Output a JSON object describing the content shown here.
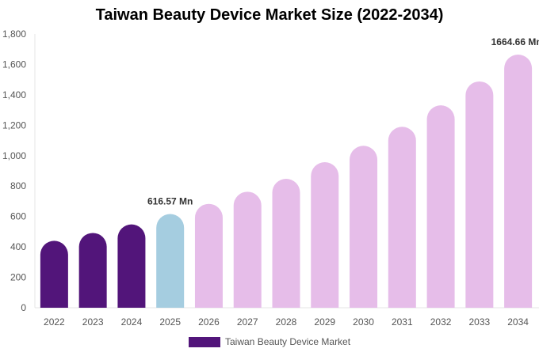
{
  "chart_data": {
    "type": "bar",
    "title": "Taiwan Beauty Device Market Size (2022-2034)",
    "xlabel": "",
    "ylabel": "",
    "categories": [
      "2022",
      "2023",
      "2024",
      "2025",
      "2026",
      "2027",
      "2028",
      "2029",
      "2030",
      "2031",
      "2032",
      "2033",
      "2034"
    ],
    "series": [
      {
        "name": "Taiwan Beauty Device Market",
        "values": [
          440,
          492,
          548,
          616.57,
          683,
          763,
          848,
          957,
          1065,
          1190,
          1331,
          1488,
          1664.66
        ]
      }
    ],
    "ylim": [
      0,
      1800
    ],
    "yticks": [
      "0",
      "200",
      "400",
      "600",
      "800",
      "1,000",
      "1,200",
      "1,400",
      "1,600",
      "1,800"
    ],
    "ytick_values": [
      0,
      200,
      400,
      600,
      800,
      1000,
      1200,
      1400,
      1600,
      1800
    ],
    "data_labels": [
      {
        "category": "2025",
        "text": "616.57 Mn"
      },
      {
        "category": "2034",
        "text": "1664.66 Mn"
      }
    ],
    "bar_colors": {
      "historical": "#52157a",
      "base_year": "#a5cde0",
      "forecast": "#e6bde9"
    },
    "legend_color": "#52157a",
    "legend_position": "bottom-center",
    "grid": false
  }
}
